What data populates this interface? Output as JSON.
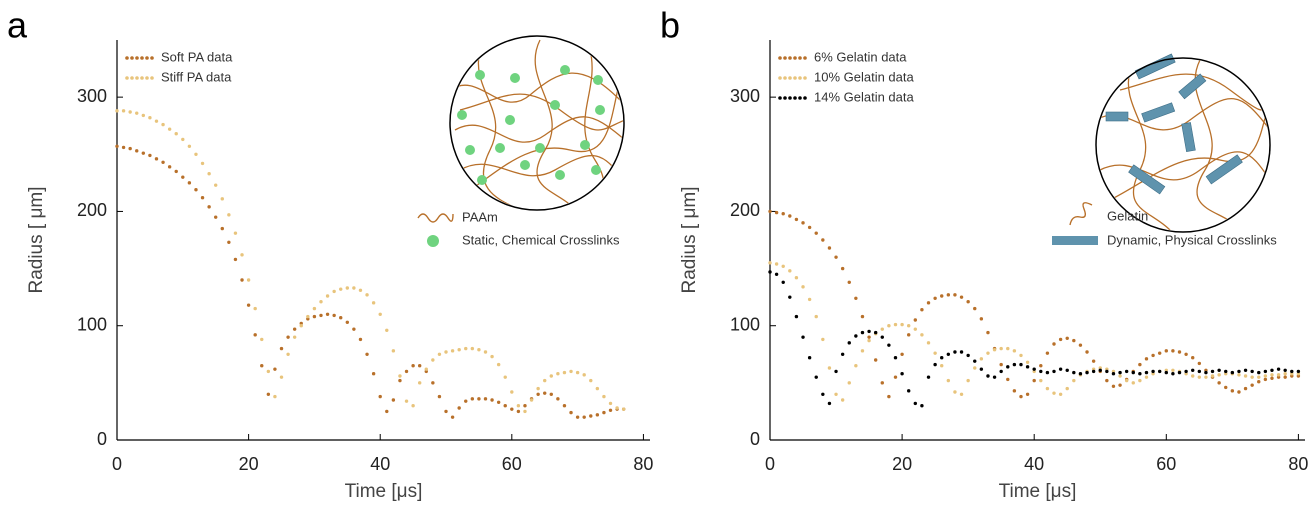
{
  "chart_data": [
    {
      "type": "scatter",
      "panel_label": "a",
      "xlabel": "Time [μs]",
      "ylabel": "Radius [ μm]",
      "xlim": [
        0,
        81
      ],
      "ylim": [
        0,
        350
      ],
      "xticks": [
        0,
        20,
        40,
        60,
        80
      ],
      "yticks": [
        0,
        100,
        200,
        300
      ],
      "legend": "upper left",
      "inset_labels": [
        "PAAm",
        "Static, Chemical Crosslinks"
      ],
      "x": [
        0,
        1,
        2,
        3,
        4,
        5,
        6,
        7,
        8,
        9,
        10,
        11,
        12,
        13,
        14,
        15,
        16,
        17,
        18,
        19,
        20,
        21,
        22,
        23,
        24,
        25,
        26,
        27,
        28,
        29,
        30,
        31,
        32,
        33,
        34,
        35,
        36,
        37,
        38,
        39,
        40,
        41,
        42,
        43,
        44,
        45,
        46,
        47,
        48,
        49,
        50,
        51,
        52,
        53,
        54,
        55,
        56,
        57,
        58,
        59,
        60,
        61,
        62,
        63,
        64,
        65,
        66,
        67,
        68,
        69,
        70,
        71,
        72,
        73,
        74,
        75,
        76,
        77
      ],
      "series": [
        {
          "name": "Soft PA data",
          "color": "#b8702a",
          "values": [
            257,
            256,
            255,
            253,
            251,
            249,
            246,
            243,
            239,
            235,
            230,
            225,
            219,
            212,
            204,
            195,
            185,
            173,
            158,
            140,
            118,
            92,
            65,
            40,
            62,
            80,
            90,
            97,
            102,
            106,
            108,
            109,
            110,
            109,
            107,
            103,
            97,
            88,
            75,
            58,
            38,
            25,
            35,
            52,
            60,
            65,
            65,
            60,
            50,
            38,
            25,
            20,
            28,
            34,
            36,
            36,
            36,
            35,
            33,
            30,
            27,
            25,
            30,
            36,
            40,
            41,
            40,
            36,
            30,
            24,
            20,
            20,
            21,
            22,
            24,
            26,
            27,
            27
          ]
        },
        {
          "name": "Stiff PA data",
          "color": "#e8c47c",
          "values": [
            288,
            288,
            287,
            286,
            284,
            282,
            279,
            276,
            272,
            268,
            263,
            257,
            250,
            242,
            233,
            223,
            211,
            197,
            181,
            162,
            140,
            115,
            88,
            60,
            38,
            55,
            75,
            90,
            100,
            108,
            115,
            121,
            126,
            130,
            132,
            133,
            133,
            131,
            127,
            120,
            110,
            96,
            78,
            56,
            34,
            30,
            50,
            62,
            70,
            75,
            77,
            78,
            79,
            80,
            80,
            79,
            77,
            73,
            66,
            55,
            42,
            30,
            25,
            35,
            45,
            52,
            56,
            58,
            59,
            60,
            59,
            57,
            52,
            45,
            38,
            32,
            28,
            27
          ]
        }
      ]
    },
    {
      "type": "scatter",
      "panel_label": "b",
      "xlabel": "Time [μs]",
      "ylabel": "Radius [ μm]",
      "xlim": [
        0,
        81
      ],
      "ylim": [
        0,
        350
      ],
      "xticks": [
        0,
        20,
        40,
        60,
        80
      ],
      "yticks": [
        0,
        100,
        200,
        300
      ],
      "legend": "upper left",
      "inset_labels": [
        "Gelatin",
        "Dynamic, Physical Crosslinks"
      ],
      "x": [
        0,
        1,
        2,
        3,
        4,
        5,
        6,
        7,
        8,
        9,
        10,
        11,
        12,
        13,
        14,
        15,
        16,
        17,
        18,
        19,
        20,
        21,
        22,
        23,
        24,
        25,
        26,
        27,
        28,
        29,
        30,
        31,
        32,
        33,
        34,
        35,
        36,
        37,
        38,
        39,
        40,
        41,
        42,
        43,
        44,
        45,
        46,
        47,
        48,
        49,
        50,
        51,
        52,
        53,
        54,
        55,
        56,
        57,
        58,
        59,
        60,
        61,
        62,
        63,
        64,
        65,
        66,
        67,
        68,
        69,
        70,
        71,
        72,
        73,
        74,
        75,
        76,
        77,
        78,
        79,
        80
      ],
      "series": [
        {
          "name": "6% Gelatin data",
          "color": "#b8702a",
          "values": [
            200,
            199,
            198,
            196,
            193,
            190,
            186,
            181,
            175,
            168,
            160,
            150,
            138,
            124,
            108,
            90,
            70,
            50,
            38,
            55,
            75,
            92,
            105,
            114,
            120,
            124,
            126,
            127,
            127,
            125,
            121,
            115,
            106,
            94,
            80,
            66,
            53,
            43,
            38,
            40,
            52,
            65,
            76,
            84,
            88,
            89,
            87,
            83,
            77,
            69,
            60,
            52,
            47,
            48,
            53,
            60,
            66,
            71,
            74,
            76,
            78,
            78,
            77,
            75,
            72,
            67,
            61,
            55,
            50,
            46,
            43,
            42,
            45,
            48,
            51,
            53,
            54,
            55,
            55,
            56,
            56
          ]
        },
        {
          "name": "10% Gelatin data",
          "color": "#e8c47c",
          "values": [
            155,
            154,
            152,
            148,
            142,
            134,
            123,
            108,
            88,
            63,
            40,
            35,
            50,
            65,
            78,
            87,
            93,
            97,
            100,
            101,
            101,
            100,
            97,
            92,
            85,
            76,
            65,
            52,
            42,
            40,
            52,
            63,
            71,
            76,
            79,
            80,
            80,
            78,
            74,
            68,
            60,
            52,
            45,
            41,
            40,
            45,
            52,
            57,
            60,
            62,
            63,
            62,
            60,
            56,
            52,
            50,
            52,
            55,
            58,
            60,
            61,
            61,
            60,
            58,
            56,
            55,
            55,
            56,
            57,
            58,
            58,
            57,
            56,
            55,
            55,
            56,
            57,
            57,
            58,
            58,
            58
          ]
        },
        {
          "name": "14% Gelatin data",
          "color": "#000000",
          "values": [
            147,
            145,
            138,
            125,
            108,
            90,
            72,
            55,
            40,
            32,
            60,
            75,
            85,
            91,
            94,
            95,
            94,
            90,
            83,
            72,
            58,
            43,
            32,
            30,
            55,
            66,
            72,
            75,
            77,
            77,
            74,
            69,
            62,
            56,
            55,
            60,
            64,
            66,
            66,
            64,
            62,
            60,
            59,
            60,
            62,
            61,
            59,
            58,
            59,
            60,
            61,
            60,
            58,
            59,
            60,
            59,
            58,
            59,
            60,
            60,
            59,
            58,
            59,
            60,
            61,
            60,
            59,
            60,
            61,
            60,
            59,
            60,
            61,
            60,
            59,
            60,
            61,
            62,
            61,
            60,
            60
          ]
        }
      ]
    }
  ]
}
